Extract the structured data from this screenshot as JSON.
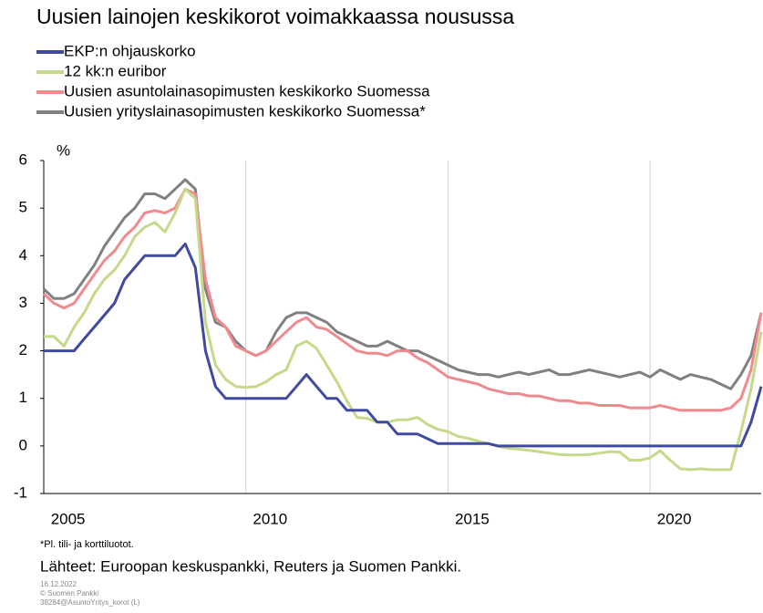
{
  "chart_data": {
    "type": "line",
    "title": "Uusien lainojen keskikorot voimakkaassa nousussa",
    "y_label": "%",
    "footnote": "*Pl. tili- ja korttiluotot.",
    "source": "Lähteet: Euroopan keskuspankki, Reuters ja Suomen Pankki.",
    "credits": [
      "16.12.2022",
      "© Suomen Pankki",
      "38284@AsuntoYritys_korot (L)"
    ],
    "x": [
      2005,
      2005.25,
      2005.5,
      2005.75,
      2006,
      2006.25,
      2006.5,
      2006.75,
      2007,
      2007.25,
      2007.5,
      2007.75,
      2008,
      2008.25,
      2008.5,
      2008.75,
      2009,
      2009.25,
      2009.5,
      2009.75,
      2010,
      2010.25,
      2010.5,
      2010.75,
      2011,
      2011.25,
      2011.5,
      2011.75,
      2012,
      2012.25,
      2012.5,
      2012.75,
      2013,
      2013.25,
      2013.5,
      2013.75,
      2014,
      2014.25,
      2014.5,
      2014.75,
      2015,
      2015.25,
      2015.5,
      2015.75,
      2016,
      2016.25,
      2016.5,
      2016.75,
      2017,
      2017.25,
      2017.5,
      2017.75,
      2018,
      2018.25,
      2018.5,
      2018.75,
      2019,
      2019.25,
      2019.5,
      2019.75,
      2020,
      2020.25,
      2020.5,
      2020.75,
      2021,
      2021.25,
      2021.5,
      2021.75,
      2022,
      2022.25,
      2022.5,
      2022.75
    ],
    "xlim": [
      2005,
      2022.75
    ],
    "xticks": [
      2005,
      2010,
      2015,
      2020
    ],
    "ylim": [
      -1,
      6
    ],
    "yticks": [
      -1,
      0,
      1,
      2,
      3,
      4,
      5,
      6
    ],
    "grid": true,
    "series": [
      {
        "name": "EKP:n ohjauskorko",
        "color": "#3f4aa0",
        "values": [
          2,
          2,
          2,
          2,
          2.25,
          2.5,
          2.75,
          3,
          3.5,
          3.75,
          4,
          4,
          4,
          4,
          4.25,
          3.75,
          2,
          1.25,
          1,
          1,
          1,
          1,
          1,
          1,
          1,
          1.25,
          1.5,
          1.25,
          1,
          1,
          0.75,
          0.75,
          0.75,
          0.5,
          0.5,
          0.25,
          0.25,
          0.25,
          0.15,
          0.05,
          0.05,
          0.05,
          0.05,
          0.05,
          0.05,
          0,
          0,
          0,
          0,
          0,
          0,
          0,
          0,
          0,
          0,
          0,
          0,
          0,
          0,
          0,
          0,
          0,
          0,
          0,
          0,
          0,
          0,
          0,
          0,
          0,
          0.5,
          1.25
        ]
      },
      {
        "name": "12 kk:n euribor",
        "color": "#c5d98a",
        "values": [
          2.3,
          2.3,
          2.1,
          2.5,
          2.8,
          3.2,
          3.5,
          3.7,
          4,
          4.4,
          4.6,
          4.7,
          4.5,
          4.9,
          5.4,
          5.2,
          2.6,
          1.7,
          1.4,
          1.25,
          1.23,
          1.25,
          1.35,
          1.5,
          1.6,
          2.1,
          2.2,
          2.05,
          1.7,
          1.35,
          0.95,
          0.6,
          0.58,
          0.5,
          0.5,
          0.55,
          0.55,
          0.6,
          0.45,
          0.35,
          0.3,
          0.2,
          0.16,
          0.1,
          0.05,
          -0.01,
          -0.05,
          -0.07,
          -0.09,
          -0.12,
          -0.15,
          -0.18,
          -0.19,
          -0.19,
          -0.18,
          -0.15,
          -0.12,
          -0.13,
          -0.3,
          -0.3,
          -0.25,
          -0.1,
          -0.3,
          -0.48,
          -0.5,
          -0.48,
          -0.5,
          -0.5,
          -0.5,
          0.3,
          1.2,
          2.4
        ]
      },
      {
        "name": "Uusien asuntolainasopimusten keskikorko Suomessa",
        "color": "#f08a8e",
        "values": [
          3.2,
          3,
          2.9,
          3,
          3.3,
          3.6,
          3.9,
          4.1,
          4.4,
          4.6,
          4.9,
          4.95,
          4.9,
          5,
          5.4,
          5.3,
          3.5,
          2.7,
          2.5,
          2.1,
          2,
          1.9,
          2,
          2.2,
          2.4,
          2.6,
          2.7,
          2.5,
          2.45,
          2.3,
          2.15,
          2,
          1.95,
          1.95,
          1.9,
          2,
          2,
          1.85,
          1.75,
          1.6,
          1.45,
          1.4,
          1.35,
          1.3,
          1.2,
          1.15,
          1.1,
          1.1,
          1.05,
          1.05,
          1,
          0.95,
          0.95,
          0.9,
          0.9,
          0.85,
          0.85,
          0.85,
          0.8,
          0.8,
          0.8,
          0.85,
          0.8,
          0.75,
          0.75,
          0.75,
          0.75,
          0.75,
          0.8,
          1,
          1.6,
          2.8
        ]
      },
      {
        "name": "Uusien yrityslainasopimusten keskikorko Suomessa*",
        "color": "#808080",
        "values": [
          3.3,
          3.1,
          3.1,
          3.2,
          3.5,
          3.8,
          4.2,
          4.5,
          4.8,
          5,
          5.3,
          5.3,
          5.2,
          5.4,
          5.6,
          5.4,
          3.3,
          2.6,
          2.5,
          2.2,
          2,
          1.9,
          2,
          2.4,
          2.7,
          2.8,
          2.8,
          2.7,
          2.6,
          2.4,
          2.3,
          2.2,
          2.1,
          2.1,
          2.2,
          2.1,
          2,
          2,
          1.9,
          1.8,
          1.7,
          1.6,
          1.55,
          1.5,
          1.5,
          1.45,
          1.5,
          1.55,
          1.5,
          1.55,
          1.6,
          1.5,
          1.5,
          1.55,
          1.6,
          1.55,
          1.5,
          1.45,
          1.5,
          1.55,
          1.45,
          1.6,
          1.5,
          1.4,
          1.5,
          1.45,
          1.4,
          1.3,
          1.2,
          1.5,
          1.9,
          2.8
        ]
      }
    ]
  }
}
